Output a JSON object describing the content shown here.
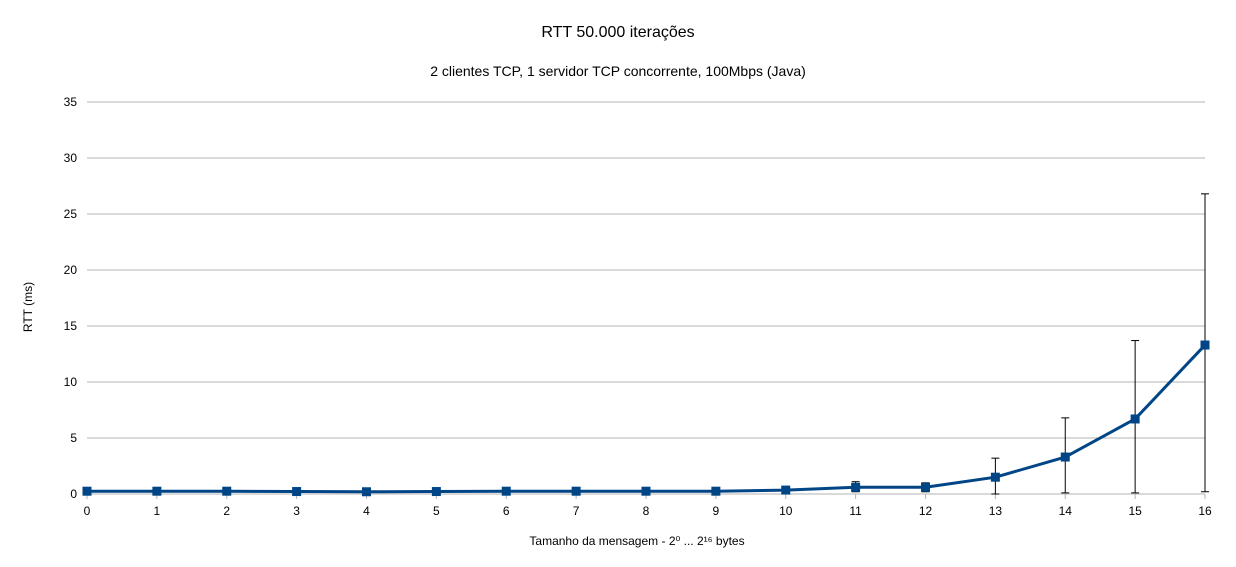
{
  "chart_data": {
    "type": "line",
    "title": "RTT 50.000 iterações",
    "subtitle": "2 clientes TCP, 1 servidor TCP concorrente, 100Mbps (Java)",
    "xlabel": "Tamanho da mensagem - 2⁰ ... 2¹⁶ bytes",
    "ylabel": "RTT (ms)",
    "x": [
      0,
      1,
      2,
      3,
      4,
      5,
      6,
      7,
      8,
      9,
      10,
      11,
      12,
      13,
      14,
      15,
      16
    ],
    "y_ticks": [
      0,
      5,
      10,
      15,
      20,
      25,
      30,
      35
    ],
    "ylim": [
      0,
      35
    ],
    "grid": true,
    "legend": "none",
    "series": [
      {
        "color": "#004586",
        "marker": "square",
        "values": [
          0.25,
          0.25,
          0.25,
          0.22,
          0.2,
          0.22,
          0.25,
          0.25,
          0.25,
          0.25,
          0.35,
          0.6,
          0.6,
          1.5,
          3.3,
          6.7,
          13.3
        ],
        "error_low": [
          0.1,
          0.1,
          0.1,
          0.1,
          0.1,
          0.1,
          0.1,
          0.1,
          0.1,
          0.1,
          0.2,
          0.2,
          0.2,
          0.0,
          0.1,
          0.1,
          0.2
        ],
        "error_high": [
          0.4,
          0.4,
          0.4,
          0.35,
          0.3,
          0.35,
          0.4,
          0.4,
          0.4,
          0.4,
          0.5,
          1.1,
          1.0,
          3.2,
          6.8,
          13.7,
          26.8
        ]
      }
    ]
  }
}
